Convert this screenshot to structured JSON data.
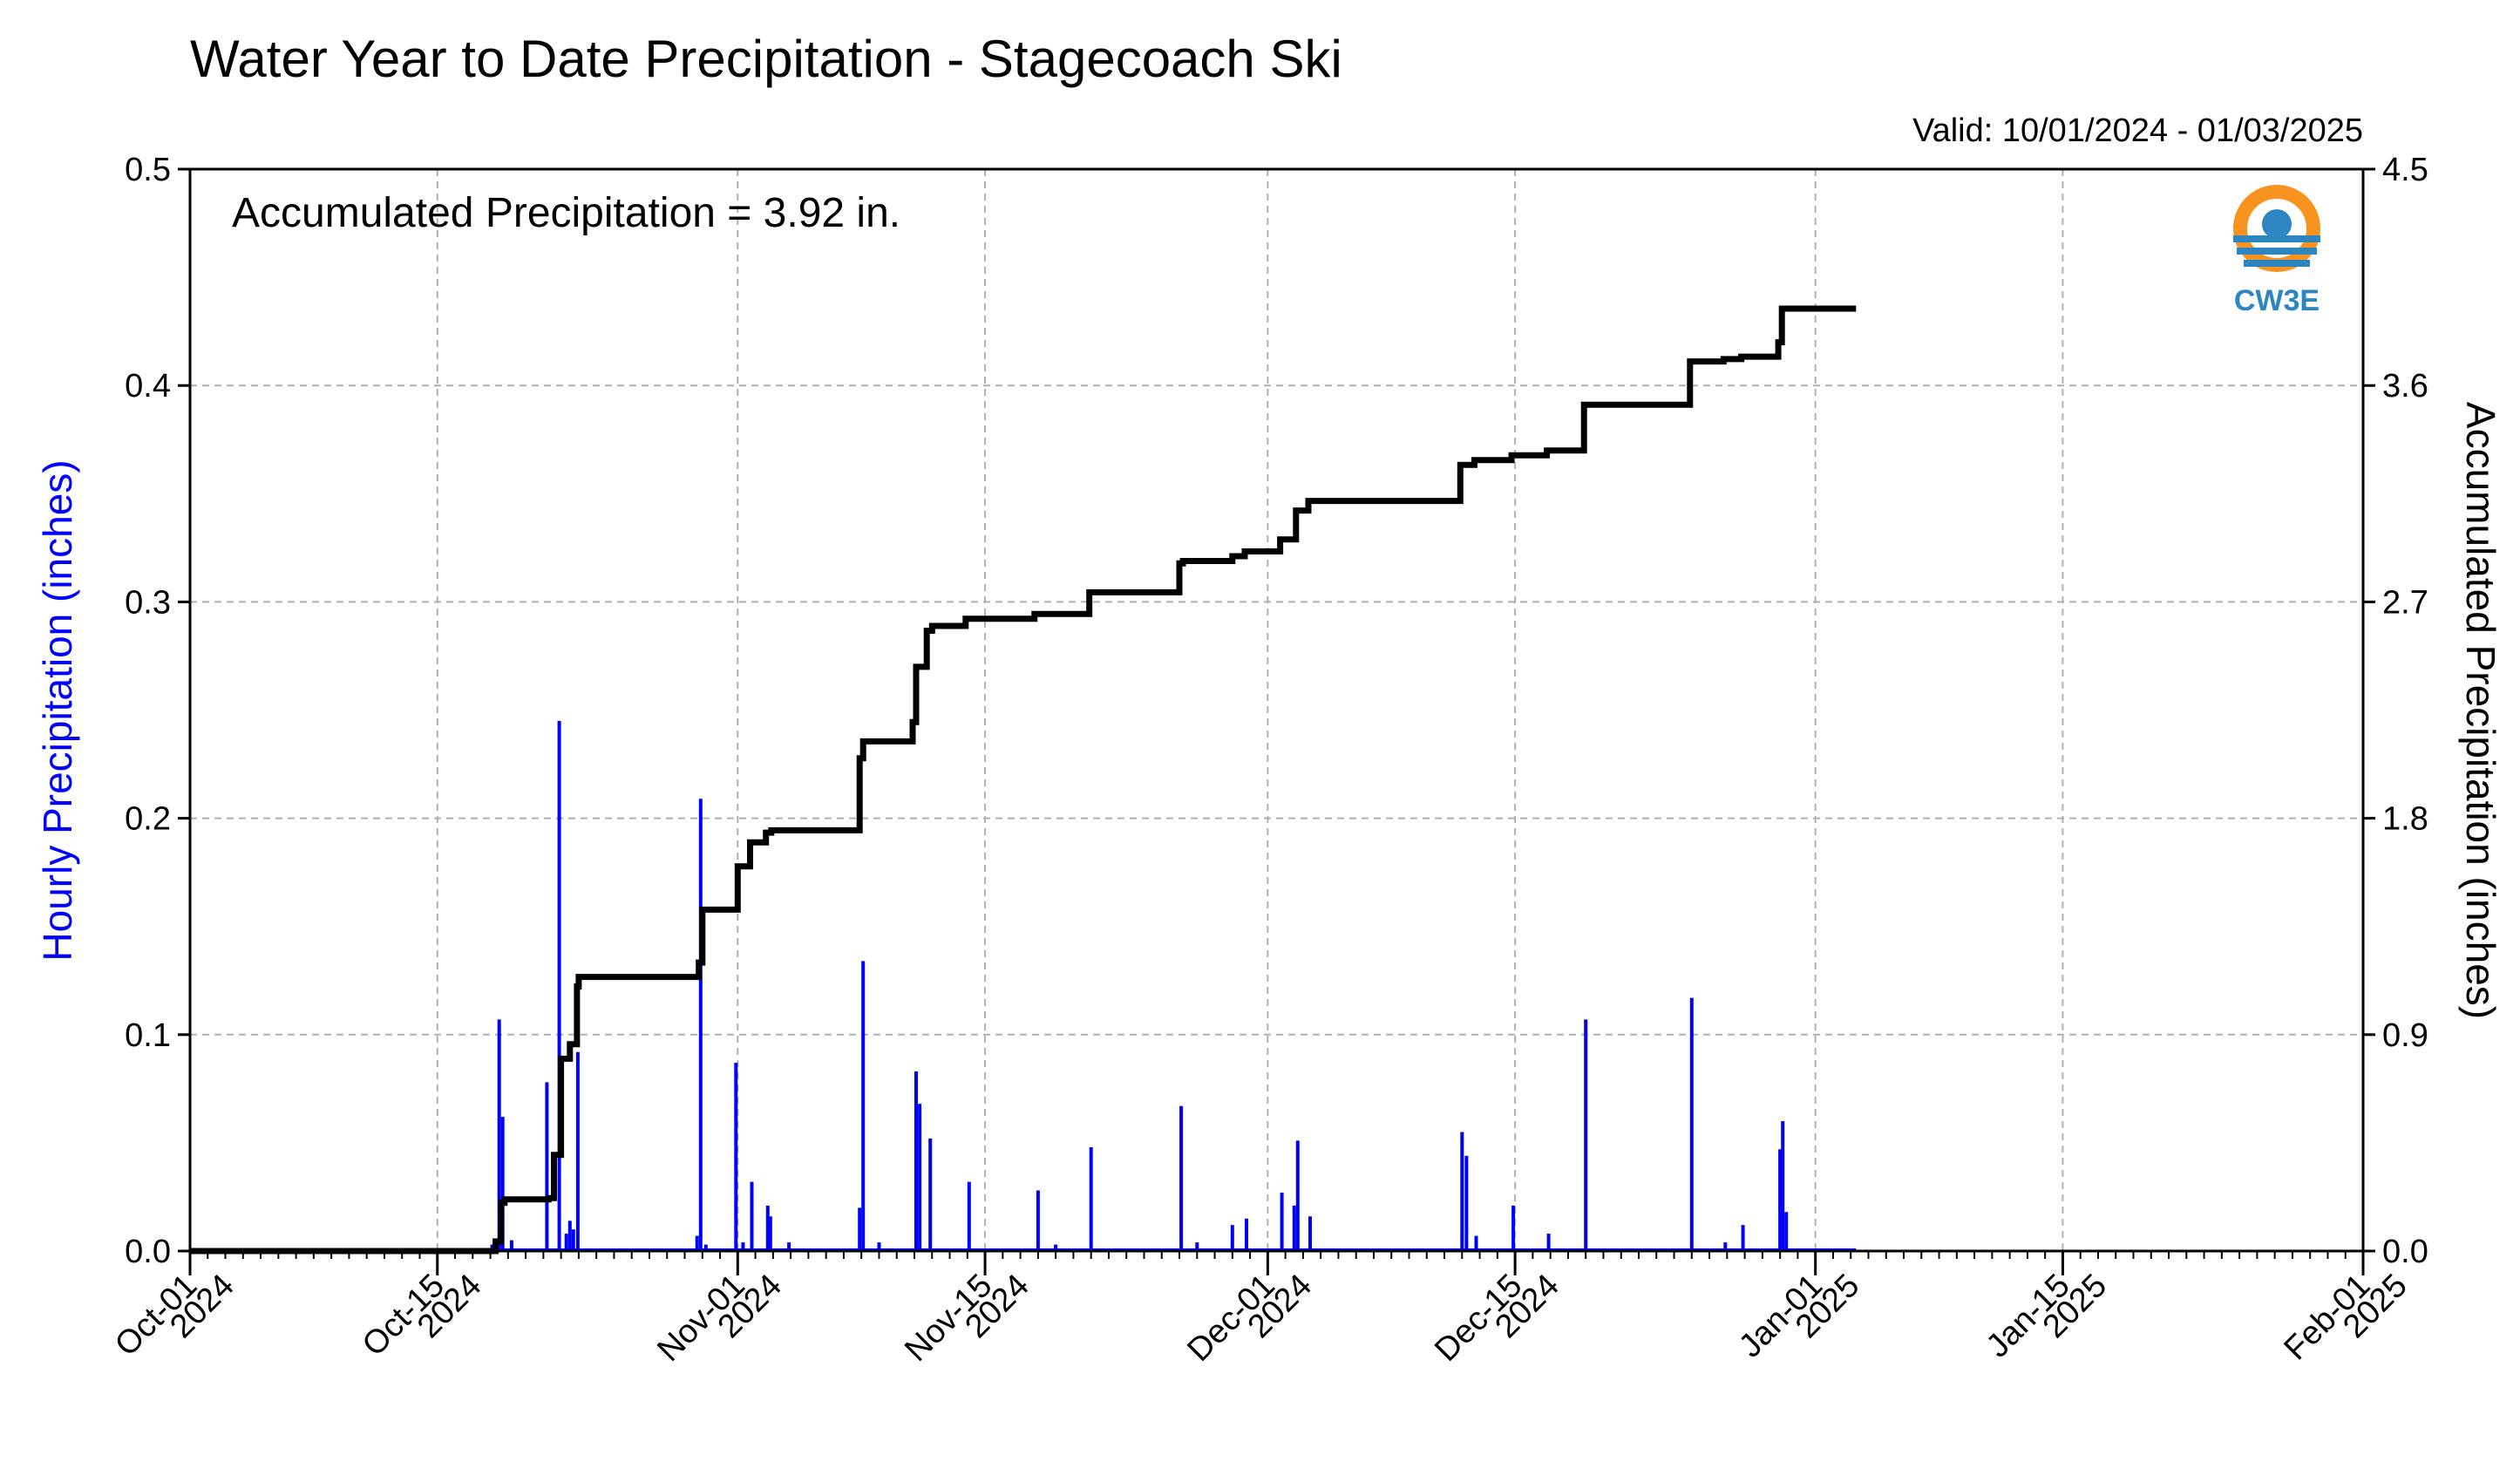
{
  "chart_data": {
    "type": "bar",
    "title": "Water Year to Date Precipitation - Stagecoach Ski",
    "valid_label": "Valid: 10/01/2024 - 01/03/2025",
    "annotation": "Accumulated Precipitation = 3.92 in.",
    "logo_text": "CW3E",
    "ylabel": "Hourly Precipitation (inches)",
    "ylabel_right": "Accumulated Precipitation (inches)",
    "ylim": [
      0,
      0.5
    ],
    "ylim_right": [
      0,
      4.5
    ],
    "xlim_days": [
      0,
      123
    ],
    "grid": true,
    "colors": {
      "bars": "#0000ff",
      "line": "#000000",
      "grid": "#b0b0b0",
      "left_label": "#0000ff"
    },
    "y_ticks_left": [
      {
        "value": 0.0,
        "label": "0.0"
      },
      {
        "value": 0.1,
        "label": "0.1"
      },
      {
        "value": 0.2,
        "label": "0.2"
      },
      {
        "value": 0.3,
        "label": "0.3"
      },
      {
        "value": 0.4,
        "label": "0.4"
      },
      {
        "value": 0.5,
        "label": "0.5"
      }
    ],
    "y_ticks_right": [
      {
        "value": 0.0,
        "label": "0.0"
      },
      {
        "value": 0.9,
        "label": "0.9"
      },
      {
        "value": 1.8,
        "label": "1.8"
      },
      {
        "value": 2.7,
        "label": "2.7"
      },
      {
        "value": 3.6,
        "label": "3.6"
      },
      {
        "value": 4.5,
        "label": "4.5"
      }
    ],
    "x_ticks": [
      {
        "day": 0,
        "line1": "Oct-01",
        "line2": "2024"
      },
      {
        "day": 14,
        "line1": "Oct-15",
        "line2": "2024"
      },
      {
        "day": 31,
        "line1": "Nov-01",
        "line2": "2024"
      },
      {
        "day": 45,
        "line1": "Nov-15",
        "line2": "2024"
      },
      {
        "day": 61,
        "line1": "Dec-01",
        "line2": "2024"
      },
      {
        "day": 75,
        "line1": "Dec-15",
        "line2": "2024"
      },
      {
        "day": 92,
        "line1": "Jan-01",
        "line2": "2025"
      },
      {
        "day": 106,
        "line1": "Jan-15",
        "line2": "2025"
      },
      {
        "day": 123,
        "line1": "Feb-01",
        "line2": "2025"
      }
    ],
    "hourly_bars": [
      [
        17.1,
        0.003
      ],
      [
        17.5,
        0.107
      ],
      [
        17.7,
        0.062
      ],
      [
        18.2,
        0.005
      ],
      [
        20.2,
        0.078
      ],
      [
        20.9,
        0.245
      ],
      [
        21.3,
        0.008
      ],
      [
        21.5,
        0.014
      ],
      [
        21.7,
        0.01
      ],
      [
        21.95,
        0.092
      ],
      [
        28.7,
        0.007
      ],
      [
        28.9,
        0.209
      ],
      [
        29.2,
        0.003
      ],
      [
        30.9,
        0.087
      ],
      [
        31.3,
        0.004
      ],
      [
        31.8,
        0.032
      ],
      [
        32.7,
        0.021
      ],
      [
        32.85,
        0.016
      ],
      [
        33.9,
        0.004
      ],
      [
        37.9,
        0.02
      ],
      [
        38.1,
        0.134
      ],
      [
        39.0,
        0.004
      ],
      [
        41.1,
        0.083
      ],
      [
        41.3,
        0.068
      ],
      [
        41.9,
        0.052
      ],
      [
        44.1,
        0.032
      ],
      [
        48.0,
        0.028
      ],
      [
        49.0,
        0.003
      ],
      [
        51.0,
        0.048
      ],
      [
        56.1,
        0.067
      ],
      [
        57.0,
        0.004
      ],
      [
        59.0,
        0.012
      ],
      [
        59.8,
        0.015
      ],
      [
        61.8,
        0.027
      ],
      [
        62.5,
        0.021
      ],
      [
        62.7,
        0.051
      ],
      [
        63.4,
        0.016
      ],
      [
        72.0,
        0.055
      ],
      [
        72.25,
        0.044
      ],
      [
        72.8,
        0.007
      ],
      [
        74.9,
        0.021
      ],
      [
        76.9,
        0.008
      ],
      [
        79.0,
        0.107
      ],
      [
        85.0,
        0.117
      ],
      [
        86.9,
        0.004
      ],
      [
        87.9,
        0.012
      ],
      [
        90.0,
        0.047
      ],
      [
        90.15,
        0.06
      ],
      [
        90.35,
        0.018
      ]
    ],
    "accumulated_steps": [
      [
        0,
        0.0
      ],
      [
        17.3,
        0.0
      ],
      [
        17.3,
        0.04
      ],
      [
        17.6,
        0.04
      ],
      [
        17.6,
        0.2
      ],
      [
        17.8,
        0.2
      ],
      [
        17.8,
        0.215
      ],
      [
        20.3,
        0.215
      ],
      [
        20.3,
        0.22
      ],
      [
        20.6,
        0.22
      ],
      [
        20.6,
        0.4
      ],
      [
        21.0,
        0.4
      ],
      [
        21.0,
        0.8
      ],
      [
        21.5,
        0.8
      ],
      [
        21.5,
        0.86
      ],
      [
        21.9,
        0.86
      ],
      [
        21.9,
        1.1
      ],
      [
        22.0,
        1.1
      ],
      [
        22.0,
        1.14
      ],
      [
        28.8,
        1.14
      ],
      [
        28.8,
        1.2
      ],
      [
        29.0,
        1.2
      ],
      [
        29.0,
        1.42
      ],
      [
        31.0,
        1.42
      ],
      [
        31.0,
        1.6
      ],
      [
        31.7,
        1.6
      ],
      [
        31.7,
        1.7
      ],
      [
        32.6,
        1.7
      ],
      [
        32.6,
        1.74
      ],
      [
        32.9,
        1.74
      ],
      [
        32.9,
        1.75
      ],
      [
        37.9,
        1.75
      ],
      [
        37.9,
        2.05
      ],
      [
        38.1,
        2.05
      ],
      [
        38.1,
        2.12
      ],
      [
        40.9,
        2.12
      ],
      [
        40.9,
        2.2
      ],
      [
        41.1,
        2.2
      ],
      [
        41.1,
        2.43
      ],
      [
        41.7,
        2.43
      ],
      [
        41.7,
        2.58
      ],
      [
        42.0,
        2.58
      ],
      [
        42.0,
        2.6
      ],
      [
        43.9,
        2.6
      ],
      [
        43.9,
        2.63
      ],
      [
        47.8,
        2.63
      ],
      [
        47.8,
        2.65
      ],
      [
        50.9,
        2.65
      ],
      [
        50.9,
        2.74
      ],
      [
        56.0,
        2.74
      ],
      [
        56.0,
        2.86
      ],
      [
        56.2,
        2.86
      ],
      [
        56.2,
        2.87
      ],
      [
        59.0,
        2.87
      ],
      [
        59.0,
        2.89
      ],
      [
        59.7,
        2.89
      ],
      [
        59.7,
        2.91
      ],
      [
        61.7,
        2.91
      ],
      [
        61.7,
        2.96
      ],
      [
        62.6,
        2.96
      ],
      [
        62.6,
        3.08
      ],
      [
        63.3,
        3.08
      ],
      [
        63.3,
        3.12
      ],
      [
        71.9,
        3.12
      ],
      [
        71.9,
        3.27
      ],
      [
        72.7,
        3.27
      ],
      [
        72.7,
        3.29
      ],
      [
        74.8,
        3.29
      ],
      [
        74.8,
        3.31
      ],
      [
        76.8,
        3.31
      ],
      [
        76.8,
        3.33
      ],
      [
        78.9,
        3.33
      ],
      [
        78.9,
        3.52
      ],
      [
        84.9,
        3.52
      ],
      [
        84.9,
        3.7
      ],
      [
        86.8,
        3.7
      ],
      [
        86.8,
        3.71
      ],
      [
        87.8,
        3.71
      ],
      [
        87.8,
        3.72
      ],
      [
        89.9,
        3.72
      ],
      [
        89.9,
        3.78
      ],
      [
        90.1,
        3.78
      ],
      [
        90.1,
        3.92
      ],
      [
        94.3,
        3.92
      ]
    ],
    "zero_line_end_day": 94.3
  }
}
